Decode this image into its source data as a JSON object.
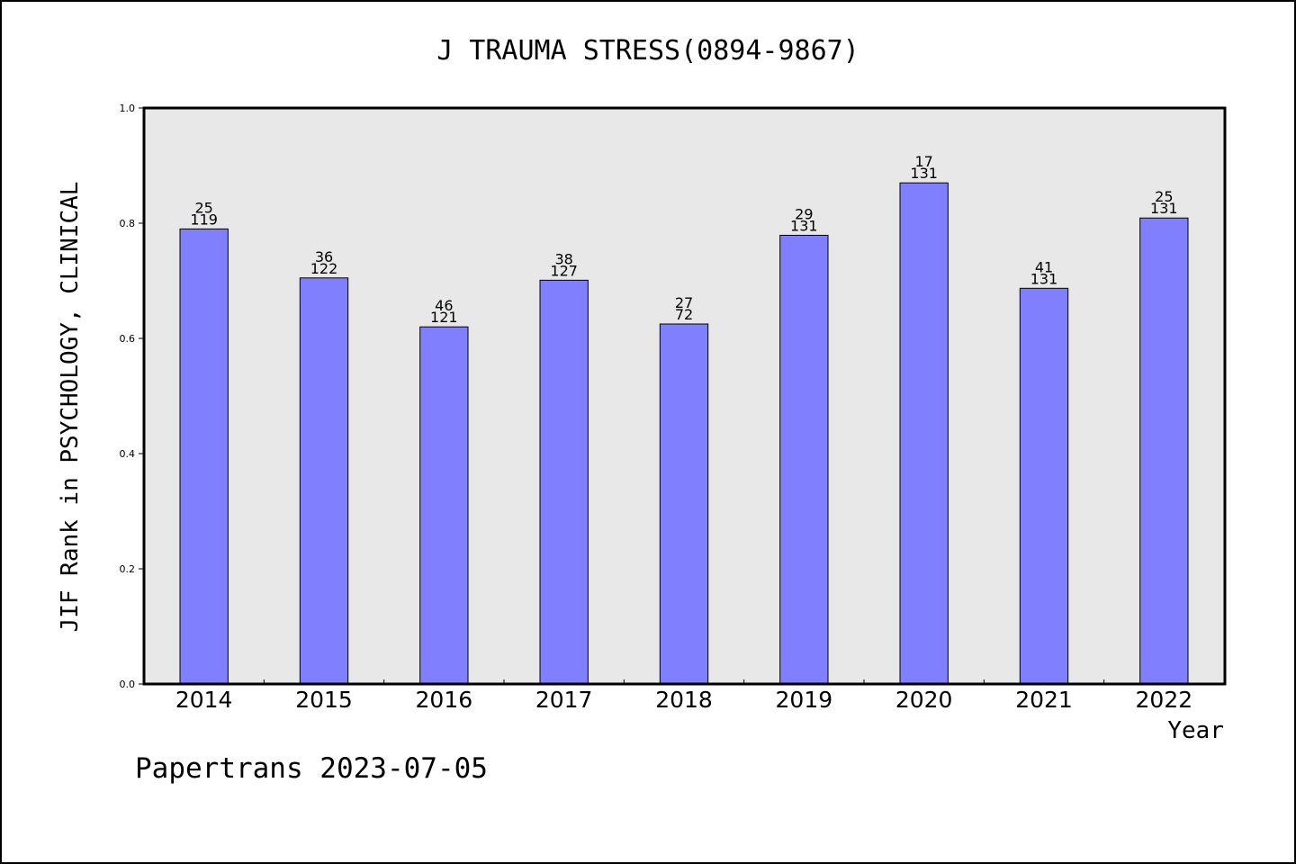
{
  "chart_data": {
    "type": "bar",
    "title": "J TRAUMA STRESS(0894-9867)",
    "xlabel": "Year",
    "ylabel": "JIF Rank in PSYCHOLOGY, CLINICAL",
    "ylim": [
      0,
      1.0
    ],
    "yticks": [
      "0.0",
      "0.2",
      "0.4",
      "0.6",
      "0.8",
      "1.0"
    ],
    "categories": [
      "2014",
      "2015",
      "2016",
      "2017",
      "2018",
      "2019",
      "2020",
      "2021",
      "2022"
    ],
    "values": [
      0.79,
      0.705,
      0.62,
      0.701,
      0.625,
      0.779,
      0.87,
      0.687,
      0.809
    ],
    "rank": [
      "25",
      "36",
      "46",
      "38",
      "27",
      "29",
      "17",
      "41",
      "25"
    ],
    "total": [
      "119",
      "122",
      "121",
      "127",
      "72",
      "131",
      "131",
      "131",
      "131"
    ],
    "bar_color": "#8080ff",
    "plot_background": "#e8e8e8",
    "grid": false,
    "legend": "none"
  },
  "footer": {
    "text": "Papertrans 2023-07-05"
  }
}
